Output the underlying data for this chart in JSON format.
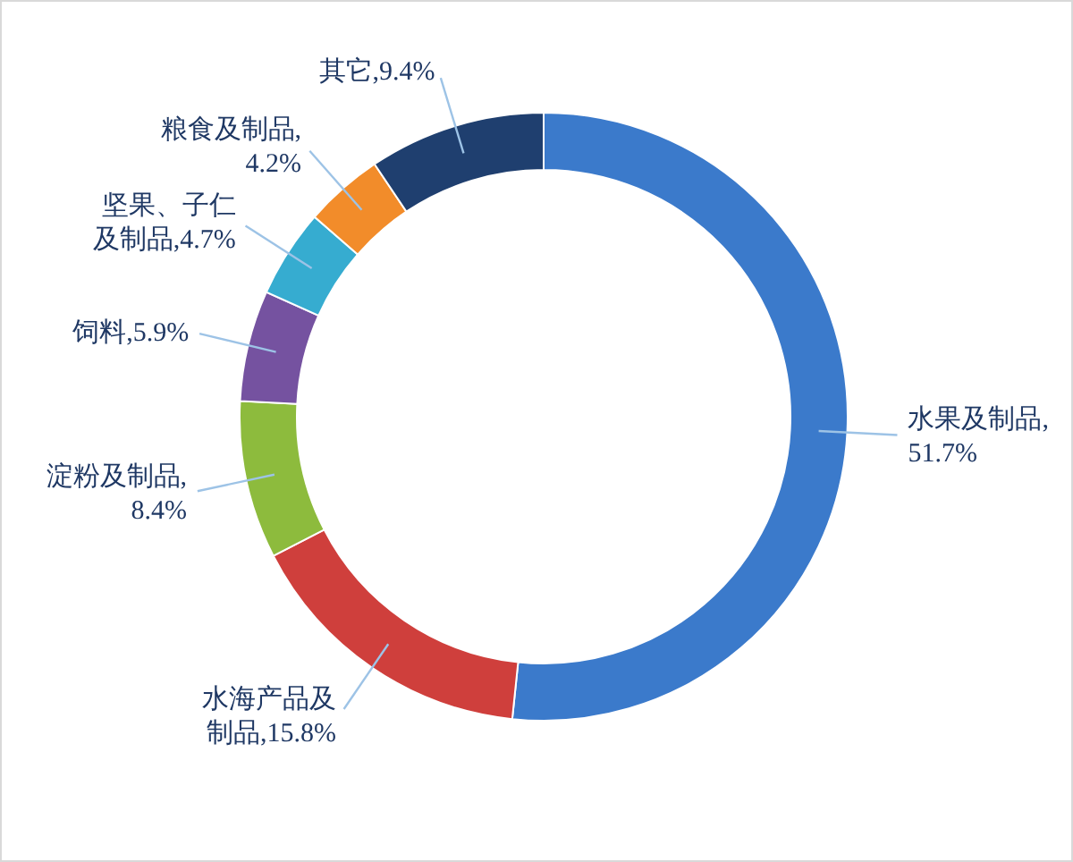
{
  "chart_data": {
    "type": "donut",
    "categories": [
      "水果及制品",
      "水海产品及制品",
      "淀粉及制品",
      "饲料",
      "坚果、子仁及制品",
      "粮食及制品",
      "其它"
    ],
    "values": [
      51.7,
      15.8,
      8.4,
      5.9,
      4.7,
      4.2,
      9.4
    ],
    "colors": [
      "#3b7acb",
      "#cf3f3c",
      "#8dbb3d",
      "#7552a0",
      "#36acd0",
      "#f28c2a",
      "#1f3f6f"
    ],
    "value_labels": [
      ",51.7%",
      ",15.8%",
      ",8.4%",
      ",5.9%",
      ",4.7%",
      ",4.2%",
      ",9.4%"
    ]
  }
}
